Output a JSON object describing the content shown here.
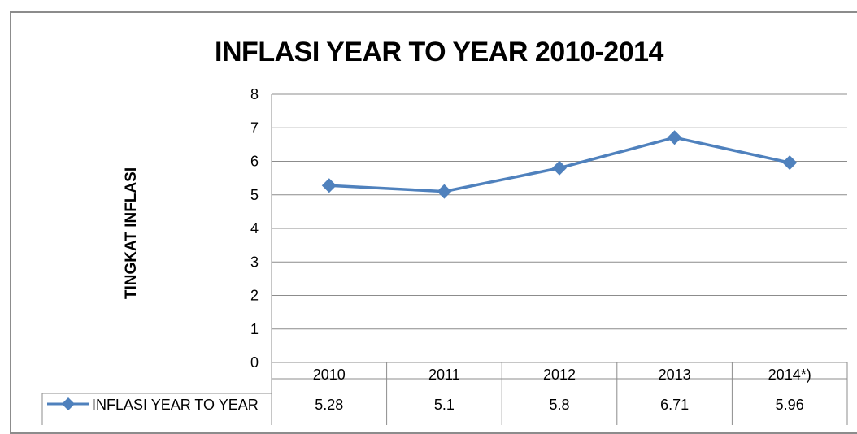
{
  "chart_data": {
    "type": "line",
    "title": "INFLASI YEAR TO YEAR 2010-2014",
    "xlabel": "",
    "ylabel": "TINGKAT INFLASI",
    "categories": [
      "2010",
      "2011",
      "2012",
      "2013",
      "2014*)"
    ],
    "series": [
      {
        "name": "INFLASI YEAR TO YEAR",
        "values": [
          5.28,
          5.1,
          5.8,
          6.71,
          5.96
        ],
        "labels": [
          "5.28",
          "5.1",
          "5.8",
          "6.71",
          "5.96"
        ]
      }
    ],
    "ylim": [
      0,
      8
    ],
    "yticks": [
      "0",
      "1",
      "2",
      "3",
      "4",
      "5",
      "6",
      "7",
      "8"
    ],
    "grid": true,
    "legend": "data-table",
    "colors": {
      "series": "#4F81BD",
      "grid": "#8c8c8c"
    }
  }
}
